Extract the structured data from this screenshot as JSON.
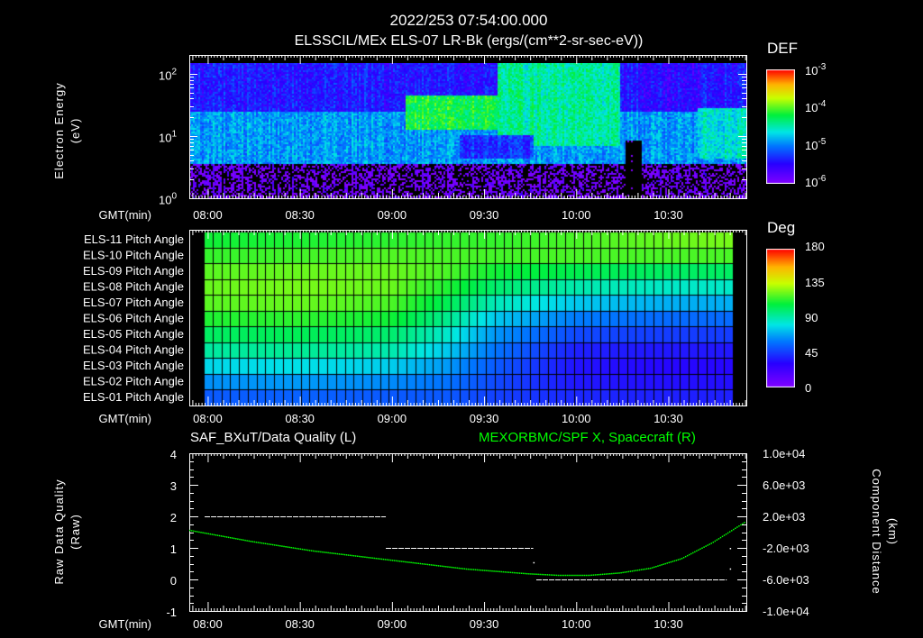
{
  "header": {
    "timestamp": "2022/253 07:54:00.000",
    "title": "ELSSCIL/MEx ELS-07 LR-Bk  (ergs/(cm**2-sr-sec-eV))"
  },
  "colors": {
    "background": "#000000",
    "axis": "#ffffff",
    "orbit_line": "#00ff00",
    "quality_line": "#ffffff"
  },
  "chart_data": [
    {
      "type": "heatmap",
      "name": "electron-spectrogram",
      "title": "ELSSCIL/MEx ELS-07 LR-Bk  (ergs/(cm**2-sr-sec-eV))",
      "ylabel": "Electron Energy\n(eV)",
      "ylabel_line1": "Electron Energy",
      "ylabel_line2": "(eV)",
      "xlabel": "GMT(min)",
      "yscale": "log",
      "ylim": [
        1,
        200
      ],
      "yticks": [
        {
          "v": 1,
          "label": "10",
          "exp": "0"
        },
        {
          "v": 10,
          "label": "10",
          "exp": "1"
        },
        {
          "v": 100,
          "label": "10",
          "exp": "2"
        }
      ],
      "x_start_min": 0,
      "x_end_min": 181,
      "xticks": [
        "08:00",
        "08:30",
        "09:00",
        "09:30",
        "10:00",
        "10:30"
      ],
      "xtick_minutes": [
        6,
        36,
        66,
        96,
        126,
        156
      ],
      "colorbar": {
        "label": "DEF",
        "scale": "log",
        "range": [
          -6,
          -3
        ],
        "ticks": [
          {
            "label": "10",
            "exp": "-3",
            "v": -3
          },
          {
            "label": "10",
            "exp": "-4",
            "v": -4
          },
          {
            "label": "10",
            "exp": "-5",
            "v": -5
          },
          {
            "label": "10",
            "exp": "-6",
            "v": -6
          }
        ]
      },
      "features": [
        {
          "t": [
            0,
            181
          ],
          "e": [
            1,
            4
          ],
          "log_def": -5.8
        },
        {
          "t": [
            0,
            181
          ],
          "e": [
            4,
            30
          ],
          "log_def": -4.9
        },
        {
          "t": [
            0,
            181
          ],
          "e": [
            30,
            200
          ],
          "log_def": -5.4
        },
        {
          "t": [
            70,
            110
          ],
          "e": [
            15,
            60
          ],
          "log_def": -4.2
        },
        {
          "t": [
            100,
            140
          ],
          "e": [
            8,
            200
          ],
          "log_def": -4.4
        },
        {
          "t": [
            142,
            147
          ],
          "e": [
            1,
            10
          ],
          "log_def": -6.5
        }
      ]
    },
    {
      "type": "heatmap",
      "name": "pitch-angle",
      "xlabel": "GMT(min)",
      "rows": [
        "ELS-11 Pitch Angle",
        "ELS-10 Pitch Angle",
        "ELS-09 Pitch Angle",
        "ELS-08 Pitch Angle",
        "ELS-07 Pitch Angle",
        "ELS-06 Pitch Angle",
        "ELS-05 Pitch Angle",
        "ELS-04 Pitch Angle",
        "ELS-03 Pitch Angle",
        "ELS-02 Pitch Angle",
        "ELS-01 Pitch Angle"
      ],
      "time_minutes": [
        4,
        36,
        66,
        84,
        100,
        126,
        156,
        176
      ],
      "values_deg": [
        [
          110,
          112,
          114,
          115,
          115,
          118,
          122,
          124
        ],
        [
          115,
          117,
          119,
          118,
          117,
          118,
          118,
          118
        ],
        [
          120,
          122,
          122,
          118,
          110,
          105,
          102,
          102
        ],
        [
          122,
          124,
          122,
          112,
          100,
          90,
          86,
          86
        ],
        [
          120,
          122,
          118,
          104,
          88,
          75,
          70,
          70
        ],
        [
          112,
          114,
          110,
          95,
          75,
          60,
          56,
          56
        ],
        [
          102,
          104,
          100,
          85,
          65,
          48,
          45,
          45
        ],
        [
          92,
          94,
          90,
          75,
          58,
          38,
          36,
          36
        ],
        [
          78,
          80,
          76,
          66,
          52,
          35,
          32,
          32
        ],
        [
          64,
          66,
          63,
          58,
          48,
          36,
          34,
          34
        ],
        [
          52,
          54,
          52,
          52,
          46,
          40,
          38,
          38
        ]
      ],
      "xticks": [
        "08:00",
        "08:30",
        "09:00",
        "09:30",
        "10:00",
        "10:30"
      ],
      "colorbar": {
        "label": "Deg",
        "range": [
          0,
          180
        ],
        "ticks": [
          "180",
          "135",
          "90",
          "45",
          "0"
        ],
        "tick_values": [
          180,
          135,
          90,
          45,
          0
        ]
      }
    },
    {
      "type": "line",
      "name": "quality-and-position",
      "title_left": "SAF_BXuT/Data Quality (L)",
      "title_right": "MEXORBMC/SPF X, Spacecraft (R)",
      "ylabel_left_line1": "Raw Data Quality",
      "ylabel_left_line2": "(Raw)",
      "ylabel_right_line1": "Component Distance",
      "ylabel_right_line2": "(km)",
      "xlabel": "GMT(min)",
      "xticks": [
        "08:00",
        "08:30",
        "09:00",
        "09:30",
        "10:00",
        "10:30"
      ],
      "ylim_left": [
        -1,
        4
      ],
      "yticks_left": [
        "4",
        "3",
        "2",
        "1",
        "0",
        "-1"
      ],
      "ytick_left_values": [
        4,
        3,
        2,
        1,
        0,
        -1
      ],
      "ylim_right": [
        -10000,
        10000
      ],
      "yticks_right": [
        "1.0e+04",
        "6.0e+03",
        "2.0e+03",
        "-2.0e+03",
        "-6.0e+03",
        "-1.0e+04"
      ],
      "ytick_right_values": [
        10000,
        6000,
        2000,
        -2000,
        -6000,
        -10000
      ],
      "series": [
        {
          "name": "Data Quality",
          "axis": "left",
          "segments": [
            {
              "t": [
                5,
                64
              ],
              "value": 2
            },
            {
              "t": [
                64,
                112
              ],
              "value": 1
            },
            {
              "t": [
                113,
                175
              ],
              "value": 0
            }
          ],
          "points": [
            {
              "t": 112,
              "value": 0.55
            },
            {
              "t": 176,
              "value": 1
            },
            {
              "t": 176,
              "value": 0.35
            }
          ]
        },
        {
          "name": "SPF X, Spacecraft",
          "axis": "right",
          "units": "km",
          "t": [
            0,
            20,
            40,
            66,
            90,
            110,
            120,
            130,
            140,
            150,
            160,
            170,
            181
          ],
          "values": [
            300,
            -1100,
            -2300,
            -3500,
            -4600,
            -5200,
            -5400,
            -5400,
            -5100,
            -4500,
            -3300,
            -1300,
            1400
          ]
        }
      ]
    }
  ]
}
